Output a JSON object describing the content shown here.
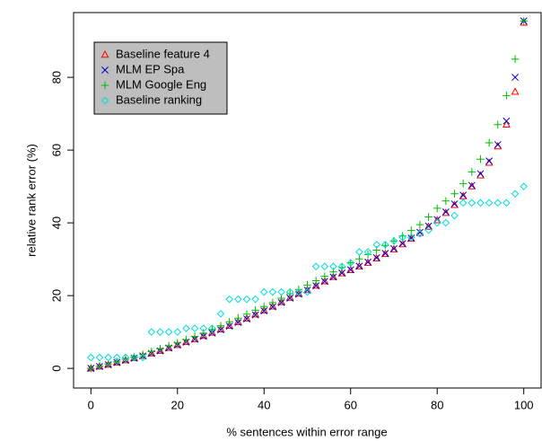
{
  "chart_data": {
    "type": "scatter",
    "xlabel": "% sentences within error range",
    "ylabel": "relative rank error (%)",
    "xlim": [
      -4,
      104
    ],
    "ylim": [
      -5.4,
      97.8
    ],
    "xticks": [
      0,
      20,
      40,
      60,
      80,
      100
    ],
    "yticks": [
      0,
      20,
      40,
      60,
      80
    ],
    "legend": "top-left",
    "x": [
      0,
      2,
      4,
      6,
      8,
      10,
      12,
      14,
      16,
      18,
      20,
      22,
      24,
      26,
      28,
      30,
      32,
      34,
      36,
      38,
      40,
      42,
      44,
      46,
      48,
      50,
      52,
      54,
      56,
      58,
      60,
      62,
      64,
      66,
      68,
      70,
      72,
      74,
      76,
      78,
      80,
      82,
      84,
      86,
      88,
      90,
      92,
      94,
      96,
      98,
      100
    ],
    "series": [
      {
        "name": "Baseline feature 4",
        "color": "#ff0000",
        "marker": "triangle",
        "values": [
          0,
          0.5,
          1,
          1.6,
          2.2,
          2.8,
          3.4,
          4.1,
          4.8,
          5.6,
          6.4,
          7.2,
          8,
          8.9,
          9.8,
          10.7,
          11.7,
          12.7,
          13.7,
          14.8,
          15.9,
          17,
          18.2,
          19.4,
          20.5,
          21.5,
          22.7,
          23.9,
          25.1,
          26.1,
          27,
          28,
          29,
          30.2,
          31.4,
          32.7,
          34.1,
          35.6,
          37.2,
          38.9,
          40.7,
          42.7,
          44.9,
          47.3,
          50,
          53,
          56.5,
          61,
          67,
          76,
          95
        ]
      },
      {
        "name": "MLM EP Spa",
        "color": "#0000cc",
        "marker": "cross",
        "values": [
          0,
          0.5,
          1,
          1.6,
          2.2,
          2.8,
          3.4,
          4.1,
          4.8,
          5.6,
          6.4,
          7.2,
          8,
          8.8,
          9.7,
          10.6,
          11.6,
          12.6,
          13.6,
          14.7,
          15.8,
          16.9,
          18.1,
          19.3,
          20.4,
          21.5,
          22.7,
          23.9,
          25.1,
          26.2,
          27.1,
          28.1,
          29.2,
          30.4,
          31.6,
          32.9,
          34.3,
          35.8,
          37.4,
          39.1,
          40.9,
          43,
          45.2,
          47.6,
          50.3,
          53.5,
          57,
          61.5,
          68,
          80,
          95.5
        ]
      },
      {
        "name": "MLM Google Eng",
        "color": "#00bb00",
        "marker": "plus",
        "values": [
          0,
          0.6,
          1.2,
          1.8,
          2.5,
          3.1,
          3.8,
          4.6,
          5.4,
          6.2,
          7,
          7.9,
          8.8,
          9.7,
          10.7,
          11.7,
          12.8,
          13.8,
          14.9,
          16,
          17,
          18.1,
          19.3,
          20.5,
          21.7,
          22.9,
          24.1,
          25.3,
          26.5,
          27.7,
          29,
          30.1,
          31.3,
          32.5,
          33.8,
          35,
          36.4,
          37.9,
          39.5,
          41.6,
          44,
          46,
          48,
          50.8,
          54,
          57.5,
          62,
          67,
          75,
          85,
          95.5
        ]
      },
      {
        "name": "Baseline ranking",
        "color": "#00dddd",
        "marker": "diamond",
        "values": [
          3,
          3,
          3,
          3,
          3,
          3,
          3,
          10,
          10,
          10,
          10,
          11,
          11,
          11,
          11,
          15,
          19,
          19,
          19,
          19,
          21,
          21,
          21,
          21,
          21,
          21,
          28,
          28,
          28,
          28,
          29,
          32,
          32,
          34,
          34,
          35,
          36,
          36,
          37,
          38,
          40,
          40,
          42,
          45.5,
          45.5,
          45.5,
          45.5,
          45.5,
          45.5,
          48,
          50
        ]
      }
    ]
  }
}
